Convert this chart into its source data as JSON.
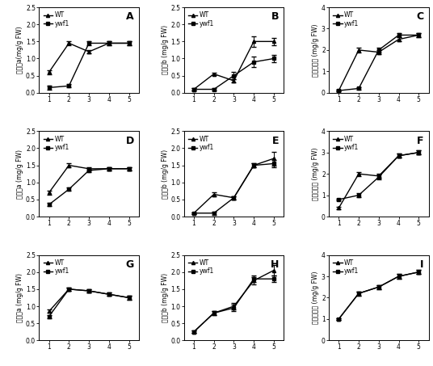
{
  "x": [
    1,
    2,
    3,
    4,
    5
  ],
  "panels": [
    {
      "label": "A",
      "ylabel": "叶绿素a(mg/g FW)",
      "ylim": [
        0,
        2.5
      ],
      "yticks": [
        0,
        0.5,
        1.0,
        1.5,
        2.0,
        2.5
      ],
      "WT": [
        0.6,
        1.45,
        1.2,
        1.45,
        1.45
      ],
      "ywf1": [
        0.15,
        0.2,
        1.45,
        1.45,
        1.45
      ],
      "WT_err": [
        0.05,
        0.05,
        0.05,
        0.05,
        0.05
      ],
      "ywf1_err": [
        0.05,
        0.05,
        0.05,
        0.05,
        0.05
      ]
    },
    {
      "label": "B",
      "ylabel": "叶绿素b (mg/g FW)",
      "ylim": [
        0,
        2.5
      ],
      "yticks": [
        0,
        0.5,
        1.0,
        1.5,
        2.0,
        2.5
      ],
      "WT": [
        0.1,
        0.55,
        0.35,
        1.5,
        1.5
      ],
      "ywf1": [
        0.1,
        0.1,
        0.5,
        0.9,
        1.0
      ],
      "WT_err": [
        0.03,
        0.04,
        0.05,
        0.15,
        0.1
      ],
      "ywf1_err": [
        0.03,
        0.03,
        0.1,
        0.15,
        0.1
      ]
    },
    {
      "label": "C",
      "ylabel": "叶绿素总量 (mg/g FW)",
      "ylim": [
        0,
        4
      ],
      "yticks": [
        0,
        1,
        2,
        3,
        4
      ],
      "WT": [
        0.1,
        2.0,
        1.9,
        2.5,
        2.7
      ],
      "ywf1": [
        0.1,
        0.2,
        2.0,
        2.7,
        2.7
      ],
      "WT_err": [
        0.03,
        0.1,
        0.1,
        0.1,
        0.1
      ],
      "ywf1_err": [
        0.03,
        0.05,
        0.1,
        0.1,
        0.1
      ]
    },
    {
      "label": "D",
      "ylabel": "叶绿素a (mg/g FW)",
      "ylim": [
        0,
        2.5
      ],
      "yticks": [
        0,
        0.5,
        1.0,
        1.5,
        2.0,
        2.5
      ],
      "WT": [
        0.7,
        1.5,
        1.4,
        1.4,
        1.4
      ],
      "ywf1": [
        0.35,
        0.8,
        1.35,
        1.4,
        1.4
      ],
      "WT_err": [
        0.05,
        0.05,
        0.05,
        0.05,
        0.05
      ],
      "ywf1_err": [
        0.05,
        0.05,
        0.05,
        0.05,
        0.05
      ]
    },
    {
      "label": "E",
      "ylabel": "叶绿素b (mg/g FW)",
      "ylim": [
        0,
        2.5
      ],
      "yticks": [
        0,
        0.5,
        1.0,
        1.5,
        2.0,
        2.5
      ],
      "WT": [
        0.1,
        0.65,
        0.55,
        1.5,
        1.7
      ],
      "ywf1": [
        0.1,
        0.1,
        0.55,
        1.5,
        1.55
      ],
      "WT_err": [
        0.03,
        0.05,
        0.05,
        0.05,
        0.2
      ],
      "ywf1_err": [
        0.03,
        0.05,
        0.05,
        0.05,
        0.1
      ]
    },
    {
      "label": "F",
      "ylabel": "叶绿素总量 (mg/g FW)",
      "ylim": [
        0,
        4
      ],
      "yticks": [
        0,
        1,
        2,
        3,
        4
      ],
      "WT": [
        0.4,
        2.0,
        1.9,
        2.85,
        3.0
      ],
      "ywf1": [
        0.8,
        1.0,
        1.85,
        2.85,
        3.0
      ],
      "WT_err": [
        0.05,
        0.1,
        0.1,
        0.1,
        0.1
      ],
      "ywf1_err": [
        0.05,
        0.1,
        0.1,
        0.1,
        0.1
      ]
    },
    {
      "label": "G",
      "ylabel": "叶绿素a (mg/g FW)",
      "ylim": [
        0,
        2.5
      ],
      "yticks": [
        0,
        0.5,
        1.0,
        1.5,
        2.0,
        2.5
      ],
      "WT": [
        0.85,
        1.5,
        1.45,
        1.35,
        1.25
      ],
      "ywf1": [
        0.7,
        1.5,
        1.45,
        1.35,
        1.25
      ],
      "WT_err": [
        0.05,
        0.05,
        0.05,
        0.05,
        0.05
      ],
      "ywf1_err": [
        0.05,
        0.05,
        0.05,
        0.05,
        0.05
      ]
    },
    {
      "label": "H",
      "ylabel": "叶绿素b (mg/g FW)",
      "ylim": [
        0,
        2.5
      ],
      "yticks": [
        0,
        0.5,
        1.0,
        1.5,
        2.0,
        2.5
      ],
      "WT": [
        0.25,
        0.8,
        1.0,
        1.75,
        2.05
      ],
      "ywf1": [
        0.25,
        0.8,
        0.95,
        1.8,
        1.8
      ],
      "WT_err": [
        0.03,
        0.05,
        0.1,
        0.1,
        0.15
      ],
      "ywf1_err": [
        0.03,
        0.05,
        0.1,
        0.1,
        0.1
      ]
    },
    {
      "label": "I",
      "ylabel": "叶绿素总量 (mg/g FW)",
      "ylim": [
        0,
        4
      ],
      "yticks": [
        0,
        1,
        2,
        3,
        4
      ],
      "WT": [
        1.0,
        2.2,
        2.5,
        3.0,
        3.2
      ],
      "ywf1": [
        1.0,
        2.2,
        2.5,
        3.0,
        3.2
      ],
      "WT_err": [
        0.05,
        0.1,
        0.1,
        0.1,
        0.1
      ],
      "ywf1_err": [
        0.05,
        0.1,
        0.1,
        0.1,
        0.1
      ]
    }
  ],
  "WT_color": "#000000",
  "ywf1_color": "#000000",
  "WT_marker": "^",
  "ywf1_marker": "s",
  "fontsize_label": 5.5,
  "fontsize_tick": 5.5,
  "fontsize_legend": 5.5,
  "fontsize_panel": 9
}
